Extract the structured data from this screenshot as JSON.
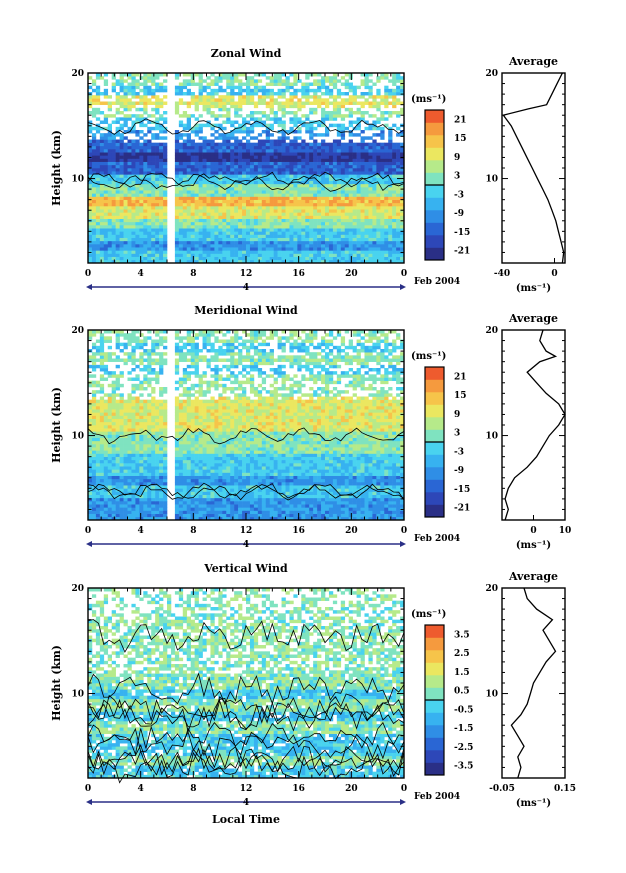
{
  "palette": [
    "#2a2f86",
    "#2d47b8",
    "#2a66d4",
    "#2f8ee6",
    "#37b2f0",
    "#49d3ef",
    "#7fe3c0",
    "#b6ea8a",
    "#ebe760",
    "#f6c44a",
    "#f59a3e",
    "#ee5b2e"
  ],
  "chart_data": [
    {
      "type": "heatmap",
      "title": "Zonal Wind",
      "xlabel": "",
      "ylabel": "Height (km)",
      "xlim": [
        0,
        24
      ],
      "ylim": [
        2,
        20
      ],
      "x_ticks": [
        "0",
        "4",
        "8",
        "12",
        "16",
        "20",
        "0"
      ],
      "y_ticks": [
        "10",
        "20"
      ],
      "date_marker": "4",
      "date_label": "Feb 2004",
      "colorbar": {
        "unit": "(ms⁻¹)",
        "ticks": [
          "21",
          "15",
          "9",
          "3",
          "-3",
          "-9",
          "-15",
          "-21"
        ],
        "range": [
          -24,
          24
        ]
      },
      "profile": {
        "title": "Average",
        "xlim": [
          -40,
          8
        ],
        "x_ticks": [
          "-40",
          "0"
        ],
        "y_ticks": [
          "10",
          "20"
        ],
        "xlabel": "(ms⁻¹)",
        "points": [
          [
            6,
            2
          ],
          [
            7,
            3
          ],
          [
            5,
            4
          ],
          [
            3,
            5
          ],
          [
            1,
            6
          ],
          [
            -2,
            7
          ],
          [
            -5,
            8
          ],
          [
            -9,
            9
          ],
          [
            -13,
            10
          ],
          [
            -17,
            11
          ],
          [
            -21,
            12
          ],
          [
            -25,
            13
          ],
          [
            -29,
            14
          ],
          [
            -33,
            15
          ],
          [
            -39,
            16
          ],
          [
            -20,
            16.6
          ],
          [
            -6,
            17
          ],
          [
            -2,
            18
          ],
          [
            2,
            19
          ],
          [
            6,
            20
          ]
        ]
      },
      "layers": [
        [
          -3,
          -9,
          -3,
          3,
          9,
          15,
          3,
          -3,
          -15,
          -21,
          -15,
          -9,
          -3,
          3,
          9,
          -3,
          3
        ]
      ]
    },
    {
      "type": "heatmap",
      "title": "Meridional Wind",
      "xlabel": "",
      "ylabel": "Height (km)",
      "xlim": [
        0,
        24
      ],
      "ylim": [
        2,
        20
      ],
      "x_ticks": [
        "0",
        "4",
        "8",
        "12",
        "16",
        "20",
        "0"
      ],
      "y_ticks": [
        "10",
        "20"
      ],
      "date_marker": "4",
      "date_label": "Feb 2004",
      "colorbar": {
        "unit": "(ms⁻¹)",
        "ticks": [
          "21",
          "15",
          "9",
          "3",
          "-3",
          "-9",
          "-15",
          "-21"
        ],
        "range": [
          -24,
          24
        ]
      },
      "profile": {
        "title": "Average",
        "xlim": [
          -10,
          10
        ],
        "x_ticks": [
          "0",
          "10"
        ],
        "y_ticks": [
          "10",
          "20"
        ],
        "xlabel": "(ms⁻¹)",
        "points": [
          [
            -9,
            2
          ],
          [
            -8,
            3
          ],
          [
            -9,
            4
          ],
          [
            -8,
            5
          ],
          [
            -6,
            6
          ],
          [
            -2,
            7
          ],
          [
            1,
            8
          ],
          [
            3,
            9
          ],
          [
            5,
            10
          ],
          [
            8,
            11
          ],
          [
            10,
            12
          ],
          [
            8,
            13
          ],
          [
            4,
            14
          ],
          [
            1,
            15
          ],
          [
            -2,
            16
          ],
          [
            2,
            17
          ],
          [
            7,
            17.5
          ],
          [
            4,
            18
          ],
          [
            2,
            19
          ],
          [
            3,
            20
          ]
        ]
      },
      "layers": [
        [
          -9,
          -9,
          -3,
          -9,
          -3,
          -3,
          3,
          3,
          9,
          9,
          9,
          3,
          3,
          -3,
          3,
          -3,
          3
        ]
      ]
    },
    {
      "type": "heatmap",
      "title": "Vertical Wind",
      "xlabel": "Local Time",
      "ylabel": "Height (km)",
      "xlim": [
        0,
        24
      ],
      "ylim": [
        2,
        20
      ],
      "x_ticks": [
        "0",
        "4",
        "8",
        "12",
        "16",
        "20",
        "0"
      ],
      "y_ticks": [
        "10",
        "20"
      ],
      "date_marker": "4",
      "date_label": "Feb 2004",
      "colorbar": {
        "unit": "(ms⁻¹)",
        "ticks": [
          "3.5",
          "2.5",
          "1.5",
          "0.5",
          "-0.5",
          "-1.5",
          "-2.5",
          "-3.5"
        ],
        "range": [
          -4,
          4
        ]
      },
      "profile": {
        "title": "Average",
        "xlim": [
          -0.05,
          0.15
        ],
        "x_ticks": [
          "-0.05",
          "0.15"
        ],
        "y_ticks": [
          "10",
          "20"
        ],
        "xlabel": "(ms⁻¹)",
        "points": [
          [
            0.0,
            2
          ],
          [
            0.01,
            3
          ],
          [
            0.0,
            4
          ],
          [
            0.02,
            5
          ],
          [
            0.0,
            6
          ],
          [
            -0.02,
            7
          ],
          [
            0.01,
            8
          ],
          [
            0.03,
            9
          ],
          [
            0.04,
            10
          ],
          [
            0.05,
            11
          ],
          [
            0.07,
            12
          ],
          [
            0.09,
            13
          ],
          [
            0.12,
            14
          ],
          [
            0.1,
            15
          ],
          [
            0.08,
            16
          ],
          [
            0.11,
            17
          ],
          [
            0.06,
            18
          ],
          [
            0.03,
            19
          ],
          [
            0.02,
            20
          ]
        ]
      },
      "layers": [
        [
          -0.5,
          0.5,
          -0.5,
          -0.5,
          0.5,
          -0.5,
          0.5,
          -0.5,
          0.5,
          0.5,
          0.5,
          0.5,
          0.5,
          0.5,
          0.5,
          0.5,
          0.5
        ]
      ]
    }
  ]
}
